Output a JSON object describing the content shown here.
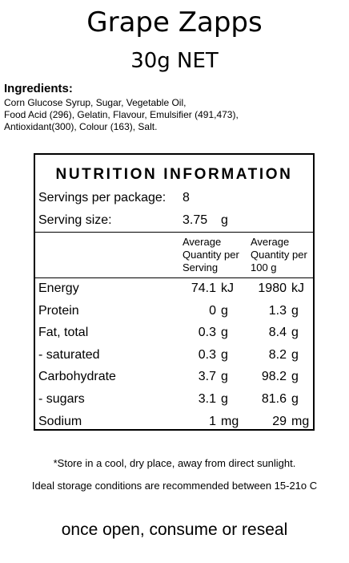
{
  "product": {
    "name": "Grape Zapps",
    "net_weight": "30g NET"
  },
  "ingredients": {
    "heading": "Ingredients:",
    "lines": [
      "Corn Glucose Syrup, Sugar, Vegetable Oil,",
      "Food Acid (296), Gelatin, Flavour, Emulsifier (491,473),",
      "Antioxidant(300), Colour (163), Salt."
    ]
  },
  "nutrition": {
    "title": "NUTRITION INFORMATION",
    "servings_label": "Servings per package:",
    "servings_value": "8",
    "serving_size_label": "Serving size:",
    "serving_size_value": "3.75",
    "serving_size_unit": "g",
    "col_serving": [
      "Average",
      "Quantity per",
      "Serving"
    ],
    "col_100g": [
      "Average",
      "Quantity per",
      "100 g"
    ],
    "rows": [
      {
        "name": "Energy",
        "serving": "74.1",
        "serving_unit": "kJ",
        "per100": "1980",
        "per100_unit": "kJ"
      },
      {
        "name": "Protein",
        "serving": "0",
        "serving_unit": "g",
        "per100": "1.3",
        "per100_unit": "g"
      },
      {
        "name": "Fat, total",
        "serving": "0.3",
        "serving_unit": "g",
        "per100": "8.4",
        "per100_unit": "g"
      },
      {
        "name": "- saturated",
        "serving": "0.3",
        "serving_unit": "g",
        "per100": "8.2",
        "per100_unit": "g"
      },
      {
        "name": "Carbohydrate",
        "serving": "3.7",
        "serving_unit": "g",
        "per100": "98.2",
        "per100_unit": "g"
      },
      {
        "name": "- sugars",
        "serving": "3.1",
        "serving_unit": "g",
        "per100": "81.6",
        "per100_unit": "g"
      },
      {
        "name": "Sodium",
        "serving": "1",
        "serving_unit": "mg",
        "per100": "29",
        "per100_unit": "mg"
      }
    ]
  },
  "notes": {
    "storage": "*Store in a cool, dry place, away from direct sunlight.",
    "ideal": "Ideal storage conditions are recommended between 15-21o C",
    "reseal": "once open, consume or reseal"
  }
}
